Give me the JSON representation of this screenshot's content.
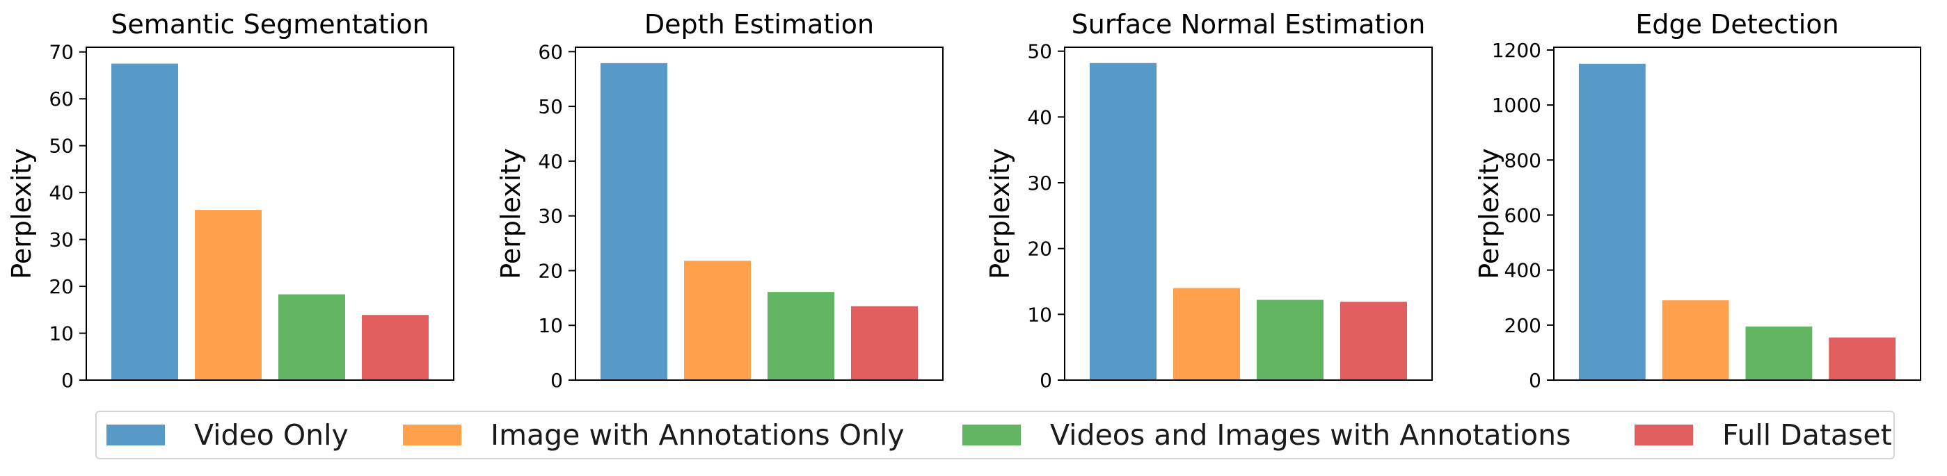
{
  "colors": {
    "video_only": "#5799c7",
    "image_annotations_only": "#ffa04d",
    "videos_and_images": "#62b662",
    "full_dataset": "#e05e5e"
  },
  "legend": {
    "items": [
      {
        "label": "Video Only",
        "color": "#5799c7"
      },
      {
        "label": "Image with Annotations Only",
        "color": "#ffa04d"
      },
      {
        "label": "Videos and Images with Annotations",
        "color": "#62b662"
      },
      {
        "label": "Full Dataset",
        "color": "#e05e5e"
      }
    ]
  },
  "chart_data": [
    {
      "type": "bar",
      "title": "Semantic Segmentation",
      "xlabel": "",
      "ylabel": "Perplexity",
      "categories": [
        "Video Only",
        "Image with Annotations Only",
        "Videos and Images with Annotations",
        "Full Dataset"
      ],
      "values": [
        67.5,
        36.3,
        18.3,
        13.9
      ],
      "ylim": [
        0,
        71
      ],
      "yticks": [
        0,
        10,
        20,
        30,
        40,
        50,
        60,
        70
      ],
      "grid": false
    },
    {
      "type": "bar",
      "title": "Depth Estimation",
      "xlabel": "",
      "ylabel": "Perplexity",
      "categories": [
        "Video Only",
        "Image with Annotations Only",
        "Videos and Images with Annotations",
        "Full Dataset"
      ],
      "values": [
        57.9,
        21.8,
        16.1,
        13.5
      ],
      "ylim": [
        0,
        60.8
      ],
      "yticks": [
        0,
        10,
        20,
        30,
        40,
        50,
        60
      ],
      "grid": false
    },
    {
      "type": "bar",
      "title": "Surface Normal Estimation",
      "xlabel": "",
      "ylabel": "Perplexity",
      "categories": [
        "Video Only",
        "Image with Annotations Only",
        "Videos and Images with Annotations",
        "Full Dataset"
      ],
      "values": [
        48.2,
        14.0,
        12.2,
        11.9
      ],
      "ylim": [
        0,
        50.6
      ],
      "yticks": [
        0,
        10,
        20,
        30,
        40,
        50
      ],
      "grid": false
    },
    {
      "type": "bar",
      "title": "Edge Detection",
      "xlabel": "",
      "ylabel": "Perplexity",
      "categories": [
        "Video Only",
        "Image with Annotations Only",
        "Videos and Images with Annotations",
        "Full Dataset"
      ],
      "values": [
        1150,
        290,
        195,
        155
      ],
      "ylim": [
        0,
        1210
      ],
      "yticks": [
        0,
        200,
        400,
        600,
        800,
        1000,
        1200
      ],
      "grid": false
    }
  ]
}
